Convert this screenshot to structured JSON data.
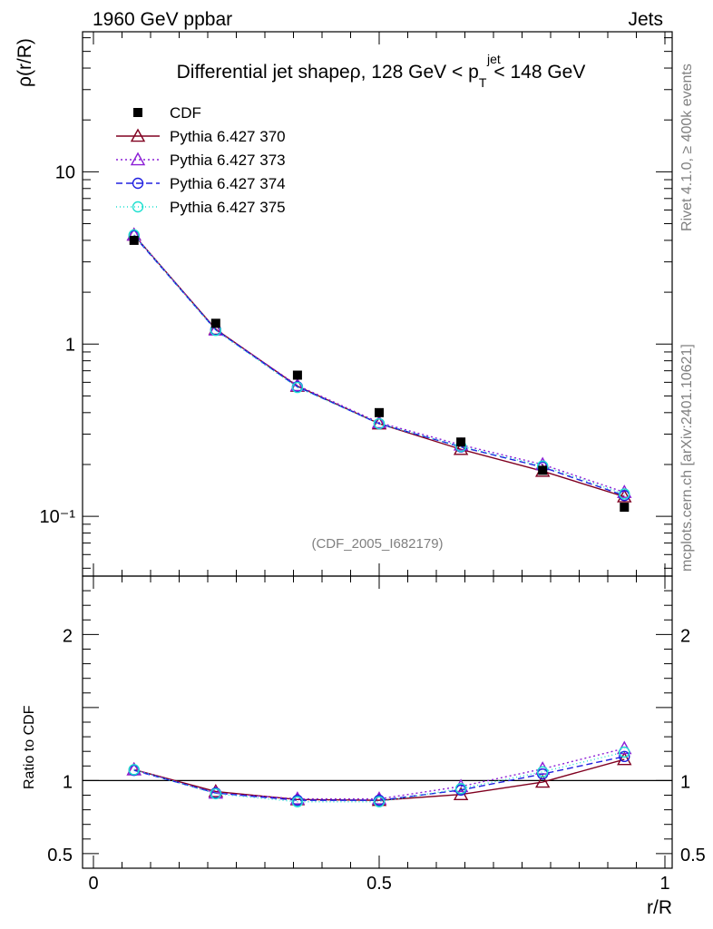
{
  "header": {
    "left": "1960 GeV ppbar",
    "right": "Jets"
  },
  "side_labels": {
    "rivet": "Rivet 4.1.0, ≥ 400k events",
    "mcplots": "mcplots.cern.ch [arXiv:2401.10621]"
  },
  "chart_data": {
    "type": "line",
    "title": "Differential jet shapeρ, 128 GeV < p_T^jet < 148 GeV",
    "title_parts": {
      "main": "Differential jet shapeρ, 128 GeV < p",
      "sup": "jet",
      "sub": "T",
      "tail": "< 148 GeV"
    },
    "watermark": "(CDF_2005_I682179)",
    "xlabel": "r/R",
    "ylabel": "ρ(r/R)",
    "ratio_ylabel": "Ratio to CDF",
    "xlim": [
      0,
      1
    ],
    "ylim": [
      0.045,
      65
    ],
    "yscale": "log",
    "ratio_ylim": [
      0.4,
      2.4
    ],
    "x_ticks": [
      {
        "v": 0,
        "label": "0"
      },
      {
        "v": 0.5,
        "label": "0.5"
      },
      {
        "v": 1,
        "label": "1"
      }
    ],
    "y_ticks": [
      {
        "v": 10,
        "label": "10"
      },
      {
        "v": 1,
        "label": "1"
      },
      {
        "v": 0.1,
        "label": "10⁻¹"
      }
    ],
    "ratio_ticks": [
      {
        "v": 2,
        "label": "2"
      },
      {
        "v": 1,
        "label": "1"
      },
      {
        "v": 0.5,
        "label": "0.5"
      }
    ],
    "x": [
      0.071,
      0.214,
      0.357,
      0.5,
      0.643,
      0.786,
      0.929
    ],
    "data": {
      "name": "CDF",
      "values": [
        4.0,
        1.32,
        0.66,
        0.4,
        0.27,
        0.185,
        0.113
      ]
    },
    "series": [
      {
        "name": "Pythia 6.427 370",
        "color": "#800020",
        "dash": "",
        "marker": "triangle",
        "values": [
          4.3,
          1.22,
          0.57,
          0.345,
          0.245,
          0.183,
          0.13
        ],
        "ratio": [
          1.075,
          0.925,
          0.87,
          0.865,
          0.905,
          0.99,
          1.145
        ]
      },
      {
        "name": "Pythia 6.427 373",
        "color": "#8c1fd6",
        "dash": "2,3",
        "marker": "triangle",
        "values": [
          4.3,
          1.21,
          0.575,
          0.35,
          0.26,
          0.2,
          0.138
        ],
        "ratio": [
          1.075,
          0.915,
          0.875,
          0.875,
          0.96,
          1.08,
          1.22
        ]
      },
      {
        "name": "Pythia 6.427 374",
        "color": "#2020e0",
        "dash": "7,4",
        "marker": "circle",
        "values": [
          4.25,
          1.21,
          0.565,
          0.345,
          0.253,
          0.193,
          0.132
        ],
        "ratio": [
          1.07,
          0.915,
          0.865,
          0.865,
          0.935,
          1.045,
          1.165
        ]
      },
      {
        "name": "Pythia 6.427 375",
        "color": "#20e0d0",
        "dash": "1,3",
        "marker": "circle",
        "values": [
          4.3,
          1.2,
          0.56,
          0.345,
          0.255,
          0.196,
          0.135
        ],
        "ratio": [
          1.075,
          0.91,
          0.855,
          0.855,
          0.945,
          1.06,
          1.195
        ]
      }
    ],
    "legend_position": "top-left"
  }
}
